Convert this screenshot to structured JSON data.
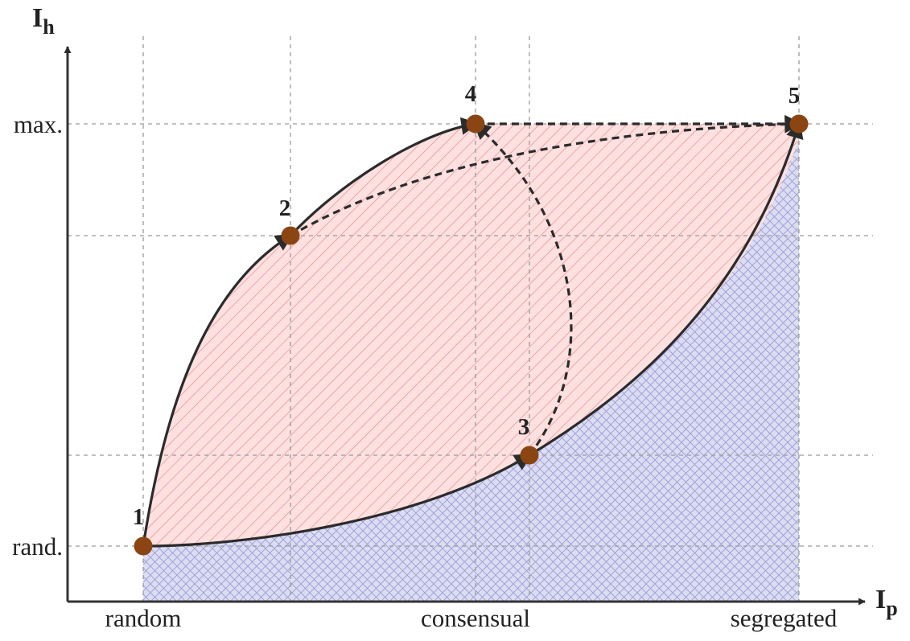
{
  "axes": {
    "y_title": {
      "main": "I",
      "sub": "h"
    },
    "x_title": {
      "main": "I",
      "sub": "p"
    },
    "y_ticks": [
      {
        "id": "max",
        "label": "max."
      },
      {
        "id": "rand",
        "label": "rand."
      }
    ],
    "x_ticks": [
      {
        "id": "random",
        "label": "random"
      },
      {
        "id": "consensual",
        "label": "consensual"
      },
      {
        "id": "segregated",
        "label": "segregated"
      }
    ]
  },
  "points": [
    {
      "id": "1",
      "label": "1"
    },
    {
      "id": "2",
      "label": "2"
    },
    {
      "id": "3",
      "label": "3"
    },
    {
      "id": "4",
      "label": "4"
    },
    {
      "id": "5",
      "label": "5"
    }
  ],
  "paths": [
    {
      "id": "1-2",
      "from": "1",
      "to": "2",
      "style": "solid"
    },
    {
      "id": "2-4",
      "from": "2",
      "to": "4",
      "style": "solid"
    },
    {
      "id": "1-3",
      "from": "1",
      "to": "3",
      "style": "solid"
    },
    {
      "id": "3-5",
      "from": "3",
      "to": "5",
      "style": "solid"
    },
    {
      "id": "2-5",
      "from": "2",
      "to": "5",
      "style": "dashed"
    },
    {
      "id": "3-4",
      "from": "3",
      "to": "4",
      "style": "dashed"
    },
    {
      "id": "4-5",
      "from": "4",
      "to": "5",
      "style": "dashed"
    }
  ],
  "regions": [
    {
      "id": "upper-region",
      "fill": "#fde0df",
      "hatch": "#e08a8a"
    },
    {
      "id": "lower-region",
      "fill": "#dcdcf2",
      "hatch": "#9c9cd6"
    }
  ],
  "colors": {
    "point": "#8b4513",
    "line": "#2b2b2b",
    "grid": "#9a9a9a",
    "axis": "#333333"
  }
}
